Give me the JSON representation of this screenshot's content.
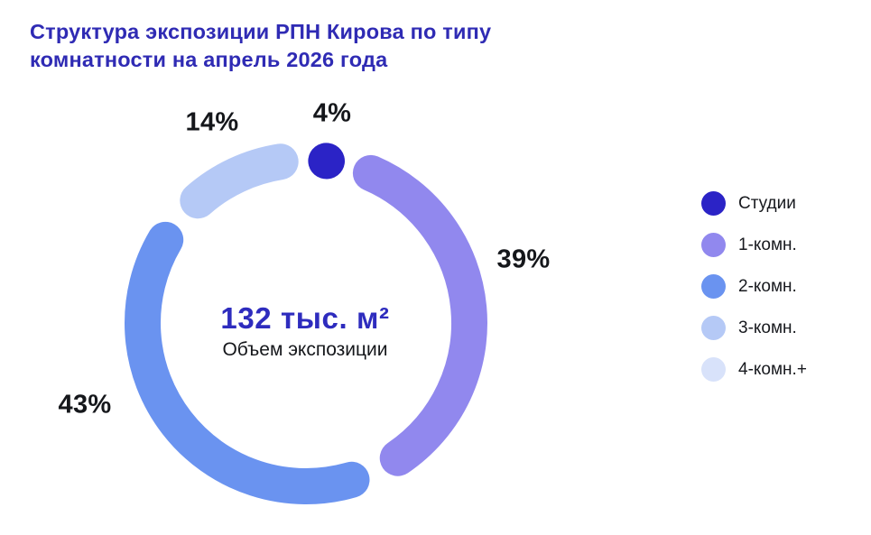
{
  "title": {
    "full": "Структура экспозиции РПН Кирова по типу комнатности на апрель 2026 года",
    "line1": "Структура экспозиции РПН Кирова по типу",
    "line2": "комнатности на апрель 2026 года"
  },
  "center": {
    "value": "132 тыс. м²",
    "label": "Объем экспозиции"
  },
  "legend": {
    "items": [
      {
        "label": "Студии",
        "color": "#2b23c6"
      },
      {
        "label": "1-комн.",
        "color": "#9188ee"
      },
      {
        "label": "2-комн.",
        "color": "#6a93f0"
      },
      {
        "label": "3-комн.",
        "color": "#b5c9f6"
      },
      {
        "label": "4-комн.+",
        "color": "#d8e2fa"
      }
    ]
  },
  "chart_data": {
    "type": "pie",
    "donut": true,
    "title": "Структура экспозиции РПН Кирова по типу комнатности на апрель 2026 года",
    "categories": [
      "Студии",
      "1-комн.",
      "2-комн.",
      "3-комн.",
      "4-комн.+"
    ],
    "values": [
      4,
      39,
      43,
      14,
      0
    ],
    "unit": "%",
    "colors": [
      "#2b23c6",
      "#9188ee",
      "#6a93f0",
      "#b5c9f6",
      "#d8e2fa"
    ],
    "data_labels": [
      "4%",
      "39%",
      "43%",
      "14%"
    ],
    "center_value": "132 тыс. м²",
    "center_label": "Объем экспозиции",
    "legend_position": "right",
    "start_angle_deg": 0,
    "direction": "clockwise",
    "grid": false
  },
  "colors": {
    "background": "#ffffff",
    "title_text": "#2f2bb4",
    "center_value_text": "#2e2cbe",
    "label_text": "#15171b"
  }
}
